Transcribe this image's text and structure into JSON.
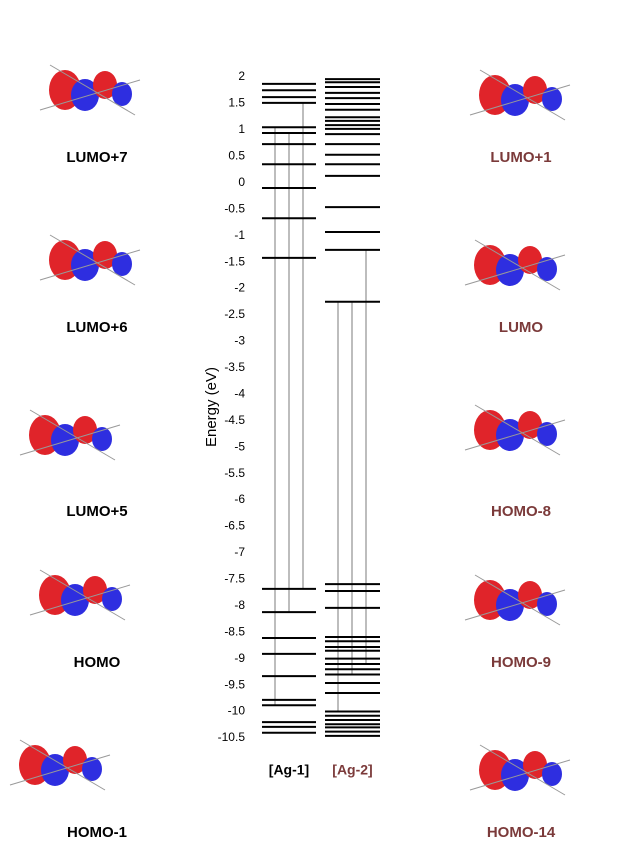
{
  "chart_data": {
    "type": "levels",
    "y_label": "Energy (eV)",
    "ylim": [
      2,
      -10.5
    ],
    "yticks": [
      2,
      1.5,
      1,
      0.5,
      0,
      -0.5,
      -1,
      -1.5,
      -2,
      -2.5,
      -3,
      -3.5,
      -4,
      -4.5,
      -5,
      -5.5,
      -6,
      -6.5,
      -7,
      -7.5,
      -8,
      -8.5,
      -9,
      -9.5,
      -10,
      -10.5
    ],
    "series": [
      {
        "name": "[Ag-1]",
        "color": "#000000",
        "label_color": "#000000",
        "values": [
          1.87,
          1.75,
          1.62,
          1.51,
          1.05,
          0.94,
          0.73,
          0.35,
          -0.1,
          -0.67,
          -1.42,
          -7.68,
          -8.12,
          -8.61,
          -8.91,
          -9.33,
          -9.78,
          -9.88,
          -10.2,
          -10.29,
          -10.4
        ],
        "transitions": [
          {
            "from": 1.05,
            "to": -9.88
          },
          {
            "from": 0.94,
            "to": -8.12
          },
          {
            "from": 1.51,
            "to": -7.68
          }
        ]
      },
      {
        "name": "[Ag-2]",
        "color": "#000000",
        "label_color": "#7b3a3a",
        "values": [
          1.96,
          1.9,
          1.81,
          1.7,
          1.6,
          1.49,
          1.38,
          1.24,
          1.17,
          1.09,
          1.02,
          0.92,
          0.73,
          0.53,
          0.35,
          0.13,
          -0.46,
          -0.93,
          -1.27,
          -2.25,
          -7.59,
          -7.72,
          -8.04,
          -8.59,
          -8.67,
          -8.78,
          -8.85,
          -9.0,
          -9.1,
          -9.2,
          -9.3,
          -9.46,
          -9.65,
          -10.0,
          -10.08,
          -10.16,
          -10.24,
          -10.3,
          -10.38,
          -10.46
        ],
        "transitions": [
          {
            "from": -2.25,
            "to": -10.0
          },
          {
            "from": -2.25,
            "to": -9.3
          },
          {
            "from": -1.27,
            "to": -9.1
          }
        ]
      }
    ],
    "transition_color": "#bdbdbd"
  },
  "panels": {
    "left": [
      "LUMO+7",
      "LUMO+6",
      "LUMO+5",
      "HOMO",
      "HOMO-1"
    ],
    "right": [
      "LUMO+1",
      "LUMO",
      "HOMO-8",
      "HOMO-9",
      "HOMO-14"
    ]
  }
}
